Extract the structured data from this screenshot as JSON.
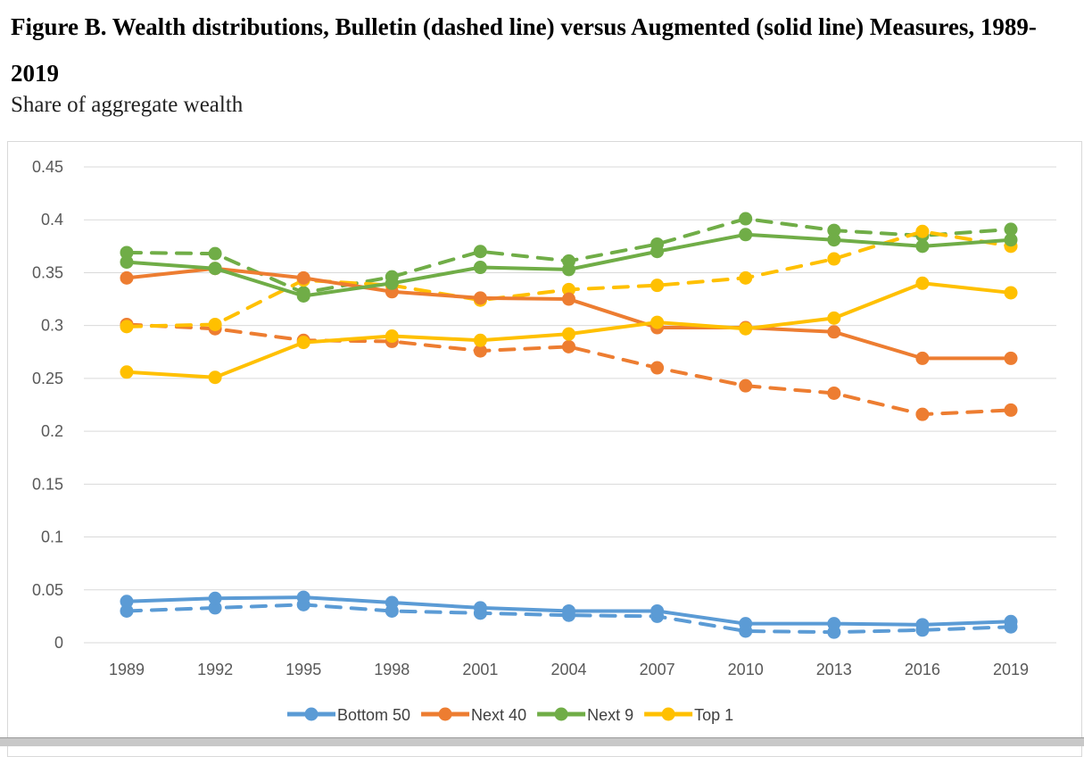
{
  "title": "Figure B. Wealth distributions, Bulletin (dashed line) versus Augmented (solid line) Measures, 1989-2019",
  "subtitle": "Share of aggregate wealth",
  "chart_data": {
    "type": "line",
    "title": "Figure B. Wealth distributions, Bulletin (dashed line) versus Augmented (solid line) Measures, 1989-2019",
    "ylabel": "Share of aggregate wealth",
    "xlabel": "",
    "ylim": [
      0,
      0.45
    ],
    "y_ticks": [
      "0",
      "0.05",
      "0.1",
      "0.15",
      "0.2",
      "0.25",
      "0.3",
      "0.35",
      "0.4",
      "0.45"
    ],
    "grid": true,
    "legend_position": "bottom",
    "x": [
      "1989",
      "1992",
      "1995",
      "1998",
      "2001",
      "2004",
      "2007",
      "2010",
      "2013",
      "2016",
      "2019"
    ],
    "series": [
      {
        "name": "Bottom 50",
        "measure": "Augmented",
        "style": "solid",
        "color": "#5b9bd5",
        "values": [
          0.039,
          0.042,
          0.043,
          0.038,
          0.033,
          0.03,
          0.03,
          0.018,
          0.018,
          0.017,
          0.02
        ]
      },
      {
        "name": "Bottom 50",
        "measure": "Bulletin",
        "style": "dashed",
        "color": "#5b9bd5",
        "values": [
          0.03,
          0.033,
          0.036,
          0.03,
          0.028,
          0.026,
          0.025,
          0.011,
          0.01,
          0.012,
          0.015
        ]
      },
      {
        "name": "Next 40",
        "measure": "Augmented",
        "style": "solid",
        "color": "#ed7d31",
        "values": [
          0.345,
          0.354,
          0.345,
          0.332,
          0.326,
          0.325,
          0.298,
          0.298,
          0.294,
          0.269,
          0.269
        ]
      },
      {
        "name": "Next 40",
        "measure": "Bulletin",
        "style": "dashed",
        "color": "#ed7d31",
        "values": [
          0.301,
          0.297,
          0.286,
          0.285,
          0.276,
          0.28,
          0.26,
          0.243,
          0.236,
          0.216,
          0.22
        ]
      },
      {
        "name": "Next 9",
        "measure": "Augmented",
        "style": "solid",
        "color": "#70ad47",
        "values": [
          0.36,
          0.354,
          0.328,
          0.34,
          0.355,
          0.353,
          0.37,
          0.386,
          0.381,
          0.375,
          0.381
        ]
      },
      {
        "name": "Next 9",
        "measure": "Bulletin",
        "style": "dashed",
        "color": "#70ad47",
        "values": [
          0.369,
          0.368,
          0.331,
          0.346,
          0.37,
          0.361,
          0.377,
          0.401,
          0.39,
          0.385,
          0.391
        ]
      },
      {
        "name": "Top 1",
        "measure": "Augmented",
        "style": "solid",
        "color": "#ffc000",
        "values": [
          0.256,
          0.251,
          0.284,
          0.29,
          0.286,
          0.292,
          0.303,
          0.297,
          0.307,
          0.34,
          0.331
        ]
      },
      {
        "name": "Top 1",
        "measure": "Bulletin",
        "style": "dashed",
        "color": "#ffc000",
        "values": [
          0.299,
          0.301,
          0.343,
          0.338,
          0.324,
          0.334,
          0.338,
          0.345,
          0.363,
          0.389,
          0.375
        ]
      }
    ],
    "legend": [
      {
        "name": "Bottom 50",
        "color": "#5b9bd5"
      },
      {
        "name": "Next 40",
        "color": "#ed7d31"
      },
      {
        "name": "Next 9",
        "color": "#70ad47"
      },
      {
        "name": "Top 1",
        "color": "#ffc000"
      }
    ]
  }
}
